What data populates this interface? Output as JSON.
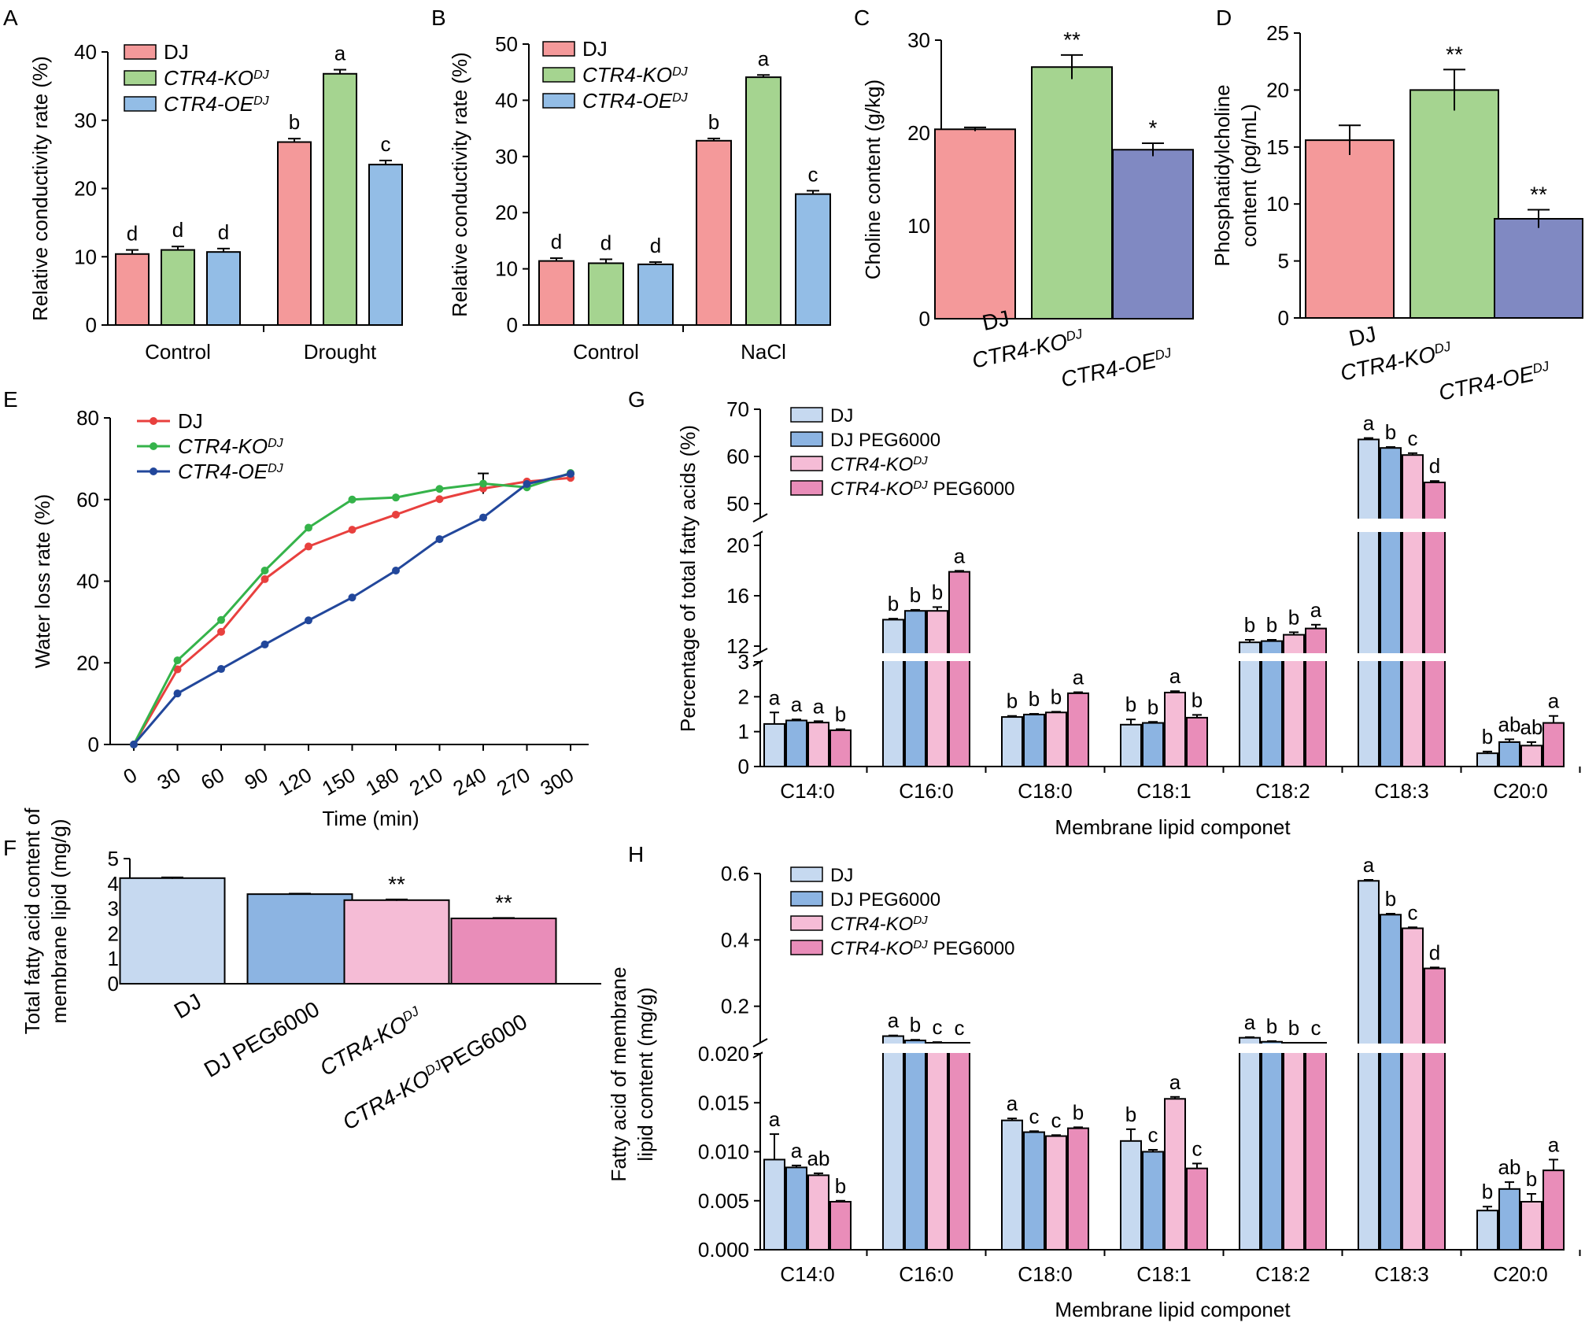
{
  "colors": {
    "dj": "#f4999a",
    "ko": "#a5d490",
    "oe": "#93bde6",
    "oe_purple": "#8089c2",
    "line_dj": "#e8403e",
    "line_ko": "#35b34a",
    "line_oe": "#22479b",
    "fa_dj": "#c6d9f0",
    "fa_djpeg": "#8cb4e2",
    "fa_ko": "#f5bcd6",
    "fa_kopeg": "#e98db9"
  },
  "chart_data": [
    {
      "panel": "A",
      "type": "bar",
      "ylabel": "Relative conductivity rate (%)",
      "ylim": [
        0,
        40
      ],
      "yticks": [
        0,
        10,
        20,
        30,
        40
      ],
      "categories": [
        "Control",
        "Drought"
      ],
      "legend": [
        {
          "text": "DJ",
          "sup": ""
        },
        {
          "text": "CTR4-KO",
          "sup": "DJ"
        },
        {
          "text": "CTR4-OE",
          "sup": "DJ"
        }
      ],
      "series": [
        {
          "color": "dj",
          "values": [
            10.4,
            26.8
          ],
          "errors": [
            0.6,
            0.5
          ],
          "labels": [
            "d",
            "b"
          ]
        },
        {
          "color": "ko",
          "values": [
            11.0,
            36.8
          ],
          "errors": [
            0.5,
            0.6
          ],
          "labels": [
            "d",
            "a"
          ]
        },
        {
          "color": "oe",
          "values": [
            10.7,
            23.5
          ],
          "errors": [
            0.5,
            0.6
          ],
          "labels": [
            "d",
            "c"
          ]
        }
      ]
    },
    {
      "panel": "B",
      "type": "bar",
      "ylabel": "Relative conductivity rate (%)",
      "ylim": [
        0,
        50
      ],
      "yticks": [
        0,
        10,
        20,
        30,
        40,
        50
      ],
      "categories": [
        "Control",
        "NaCl"
      ],
      "legend": [
        {
          "text": "DJ",
          "sup": ""
        },
        {
          "text": "CTR4-KO",
          "sup": "DJ"
        },
        {
          "text": "CTR4-OE",
          "sup": "DJ"
        }
      ],
      "series": [
        {
          "color": "dj",
          "values": [
            11.4,
            32.8
          ],
          "errors": [
            0.5,
            0.4
          ],
          "labels": [
            "d",
            "b"
          ]
        },
        {
          "color": "ko",
          "values": [
            11.0,
            44.1
          ],
          "errors": [
            0.7,
            0.4
          ],
          "labels": [
            "d",
            "a"
          ]
        },
        {
          "color": "oe",
          "values": [
            10.8,
            23.3
          ],
          "errors": [
            0.4,
            0.6
          ],
          "labels": [
            "d",
            "c"
          ]
        }
      ]
    },
    {
      "panel": "C",
      "type": "bar",
      "ylabel": "Choline content (g/kg)",
      "ylim": [
        0,
        30
      ],
      "yticks": [
        0,
        10,
        20,
        30
      ],
      "categories": [
        {
          "text": "DJ",
          "sup": ""
        },
        {
          "text": "CTR4-KO",
          "sup": "DJ"
        },
        {
          "text": "CTR4-OE",
          "sup": "DJ"
        }
      ],
      "values": [
        20.4,
        27.1,
        18.2
      ],
      "errors": [
        0.2,
        1.3,
        0.7
      ],
      "colors": [
        "dj",
        "ko",
        "oe_purple"
      ],
      "labels": [
        "",
        "**",
        "*"
      ]
    },
    {
      "panel": "D",
      "type": "bar",
      "ylabel": [
        "Phosphatidylcholine",
        "content (pg/mL)"
      ],
      "ylim": [
        0,
        25
      ],
      "yticks": [
        0,
        5,
        10,
        15,
        20,
        25
      ],
      "categories": [
        {
          "text": "DJ",
          "sup": ""
        },
        {
          "text": "CTR4-KO",
          "sup": "DJ"
        },
        {
          "text": "CTR4-OE",
          "sup": "DJ"
        }
      ],
      "values": [
        15.6,
        20.0,
        8.7
      ],
      "errors": [
        1.3,
        1.8,
        0.8
      ],
      "colors": [
        "dj",
        "ko",
        "oe_purple"
      ],
      "labels": [
        "",
        "**",
        "**"
      ]
    },
    {
      "panel": "E",
      "type": "line",
      "xlabel": "Time (min)",
      "ylabel": "Water loss rate (%)",
      "ylim": [
        0,
        80
      ],
      "yticks": [
        0,
        20,
        40,
        60,
        80
      ],
      "x": [
        0,
        30,
        60,
        90,
        120,
        150,
        180,
        210,
        240,
        270,
        300
      ],
      "legend": [
        {
          "text": "DJ",
          "sup": ""
        },
        {
          "text": "CTR4-KO",
          "sup": "DJ"
        },
        {
          "text": "CTR4-OE",
          "sup": "DJ"
        }
      ],
      "series": [
        {
          "color": "line_dj",
          "values": [
            0,
            18.4,
            27.6,
            40.5,
            48.5,
            52.6,
            56.3,
            60.1,
            62.7,
            64.4,
            65.3
          ]
        },
        {
          "color": "line_ko",
          "values": [
            0,
            20.6,
            30.5,
            42.6,
            53.1,
            60.0,
            60.5,
            62.6,
            63.9,
            63.0,
            66.5
          ]
        },
        {
          "color": "line_oe",
          "values": [
            0,
            12.5,
            18.5,
            24.5,
            30.4,
            36.0,
            42.6,
            50.3,
            55.6,
            63.8,
            66.3
          ]
        }
      ],
      "error_at": {
        "x": 240,
        "value": 63.9,
        "error": 2.5
      }
    },
    {
      "panel": "F",
      "type": "bar",
      "ylabel": [
        "Total fatty acid content of",
        "membrane lipid (mg/g)"
      ],
      "ylim": [
        0,
        5
      ],
      "yticks": [
        0,
        1,
        2,
        3,
        4,
        5
      ],
      "categories": [
        {
          "text": "DJ",
          "sup": "",
          "tail": ""
        },
        {
          "text": "DJ PEG6000",
          "sup": "",
          "tail": ""
        },
        {
          "text": "CTR4-KO",
          "sup": "DJ",
          "tail": ""
        },
        {
          "text": "CTR4-KO",
          "sup": "DJ",
          "tail": "PEG6000"
        }
      ],
      "values": [
        4.22,
        3.58,
        3.34,
        2.61
      ],
      "errors": [
        0.03,
        0.02,
        0.03,
        0.02
      ],
      "colors": [
        "fa_dj",
        "fa_djpeg",
        "fa_ko",
        "fa_kopeg"
      ],
      "labels": [
        "",
        "",
        "**",
        "**"
      ]
    },
    {
      "panel": "G",
      "type": "bar",
      "xlabel": "Membrane lipid componet",
      "ylabel": "Percentage of total fatty acids (%)",
      "axis_breaks": [
        [
          3,
          11.5
        ],
        [
          21,
          47
        ]
      ],
      "yticks": [
        0,
        1,
        2,
        3,
        12,
        16,
        20,
        50,
        60,
        70
      ],
      "categories": [
        "C14:0",
        "C16:0",
        "C18:0",
        "C18:1",
        "C18:2",
        "C18:3",
        "C20:0"
      ],
      "legend": [
        {
          "text": "DJ",
          "sup": "",
          "tail": ""
        },
        {
          "text": "DJ PEG6000",
          "sup": "",
          "tail": ""
        },
        {
          "text": "CTR4-KO",
          "sup": "DJ",
          "tail": ""
        },
        {
          "text": "CTR4-KO",
          "sup": "DJ",
          "tail": " PEG6000"
        }
      ],
      "series": [
        {
          "color": "fa_dj",
          "values": [
            1.22,
            14.1,
            1.42,
            1.2,
            12.3,
            63.6,
            0.38
          ],
          "errors": [
            0.33,
            0.08,
            0.03,
            0.15,
            0.2,
            0.3,
            0.05
          ],
          "labels": [
            "a",
            "b",
            "b",
            "b",
            "b",
            "a",
            "b"
          ]
        },
        {
          "color": "fa_djpeg",
          "values": [
            1.32,
            14.8,
            1.49,
            1.25,
            12.4,
            61.8,
            0.7
          ],
          "errors": [
            0.03,
            0.08,
            0.02,
            0.03,
            0.1,
            0.2,
            0.08
          ],
          "labels": [
            "a",
            "b",
            "b",
            "b",
            "b",
            "b",
            "ab"
          ]
        },
        {
          "color": "fa_ko",
          "values": [
            1.26,
            14.8,
            1.55,
            2.12,
            12.9,
            60.3,
            0.6
          ],
          "errors": [
            0.04,
            0.3,
            0.02,
            0.04,
            0.2,
            0.4,
            0.1
          ],
          "labels": [
            "a",
            "b",
            "b",
            "a",
            "b",
            "c",
            "ab"
          ]
        },
        {
          "color": "fa_kopeg",
          "values": [
            1.04,
            17.9,
            2.1,
            1.4,
            13.4,
            54.5,
            1.25
          ],
          "errors": [
            0.03,
            0.08,
            0.03,
            0.08,
            0.3,
            0.3,
            0.2
          ],
          "labels": [
            "b",
            "a",
            "a",
            "b",
            "a",
            "d",
            "a"
          ]
        }
      ]
    },
    {
      "panel": "H",
      "type": "bar",
      "xlabel": "Membrane lipid componet",
      "ylabel": [
        "Fatty acid of membrane",
        "lipid content (mg/g)"
      ],
      "axis_breaks": [
        [
          0.02,
          0.09
        ]
      ],
      "yticks": [
        0.0,
        0.005,
        0.01,
        0.015,
        0.02,
        0.2,
        0.4,
        0.6
      ],
      "ytick_labels": [
        "0.000",
        "0.005",
        "0.010",
        "0.015",
        "0.020",
        "0.2",
        "0.4",
        "0.6"
      ],
      "categories": [
        "C14:0",
        "C16:0",
        "C18:0",
        "C18:1",
        "C18:2",
        "C18:3",
        "C20:0"
      ],
      "legend": [
        {
          "text": "DJ",
          "sup": "",
          "tail": ""
        },
        {
          "text": "DJ PEG6000",
          "sup": "",
          "tail": ""
        },
        {
          "text": "CTR4-KO",
          "sup": "DJ",
          "tail": ""
        },
        {
          "text": "CTR4-KO",
          "sup": "DJ",
          "tail": " PEG6000"
        }
      ],
      "series": [
        {
          "color": "fa_dj",
          "values": [
            0.0092,
            0.11,
            0.0132,
            0.0111,
            0.105,
            0.578,
            0.004
          ],
          "errors": [
            0.0026,
            0.002,
            0.0002,
            0.0012,
            0.002,
            0.003,
            0.0004
          ],
          "labels": [
            "a",
            "a",
            "a",
            "b",
            "a",
            "a",
            "b"
          ]
        },
        {
          "color": "fa_djpeg",
          "values": [
            0.0084,
            0.097,
            0.012,
            0.01,
            0.093,
            0.476,
            0.0062
          ],
          "errors": [
            0.0002,
            0.002,
            0.0001,
            0.0002,
            0.002,
            0.003,
            0.0007
          ],
          "labels": [
            "a",
            "b",
            "c",
            "c",
            "b",
            "b",
            "ab"
          ]
        },
        {
          "color": "fa_ko",
          "values": [
            0.0076,
            0.09,
            0.0116,
            0.0154,
            0.088,
            0.435,
            0.0049
          ],
          "errors": [
            0.0002,
            0.002,
            0.0001,
            0.0002,
            0.002,
            0.003,
            0.0008
          ],
          "labels": [
            "ab",
            "c",
            "c",
            "a",
            "b",
            "c",
            "b"
          ]
        },
        {
          "color": "fa_kopeg",
          "values": [
            0.0049,
            0.086,
            0.0124,
            0.0083,
            0.074,
            0.314,
            0.0081
          ],
          "errors": [
            0.0001,
            0.002,
            0.0001,
            0.0005,
            0.002,
            0.003,
            0.0011
          ],
          "labels": [
            "b",
            "c",
            "b",
            "c",
            "c",
            "d",
            "a"
          ]
        }
      ]
    }
  ]
}
